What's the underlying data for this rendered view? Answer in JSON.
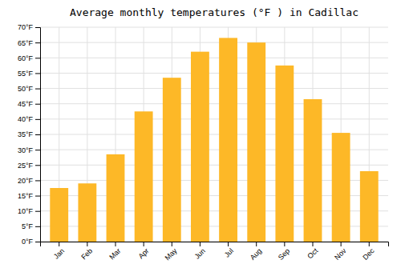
{
  "chart_data": {
    "type": "bar",
    "title": "Average monthly temperatures (°F ) in Cadillac",
    "categories": [
      "Jan",
      "Feb",
      "Mar",
      "Apr",
      "May",
      "Jun",
      "Jul",
      "Aug",
      "Sep",
      "Oct",
      "Nov",
      "Dec"
    ],
    "values": [
      17.5,
      19.0,
      28.5,
      42.5,
      53.5,
      62.0,
      66.5,
      65.0,
      57.5,
      46.5,
      35.5,
      23.0
    ],
    "color": "#FDB827",
    "ylim": [
      0,
      70
    ],
    "yticks": [
      {
        "value": 0,
        "label": "0°F"
      },
      {
        "value": 5,
        "label": "5°F"
      },
      {
        "value": 10,
        "label": "10°F"
      },
      {
        "value": 15,
        "label": "15°F"
      },
      {
        "value": 20,
        "label": "20°F"
      },
      {
        "value": 25,
        "label": "25°F"
      },
      {
        "value": 30,
        "label": "30°F"
      },
      {
        "value": 35,
        "label": "35°F"
      },
      {
        "value": 40,
        "label": "40°F"
      },
      {
        "value": 45,
        "label": "45°F"
      },
      {
        "value": 50,
        "label": "50°F"
      },
      {
        "value": 55,
        "label": "55°F"
      },
      {
        "value": 60,
        "label": "60°F"
      },
      {
        "value": 65,
        "label": "65°F"
      },
      {
        "value": 70,
        "label": "70°F"
      }
    ],
    "grid": true
  }
}
